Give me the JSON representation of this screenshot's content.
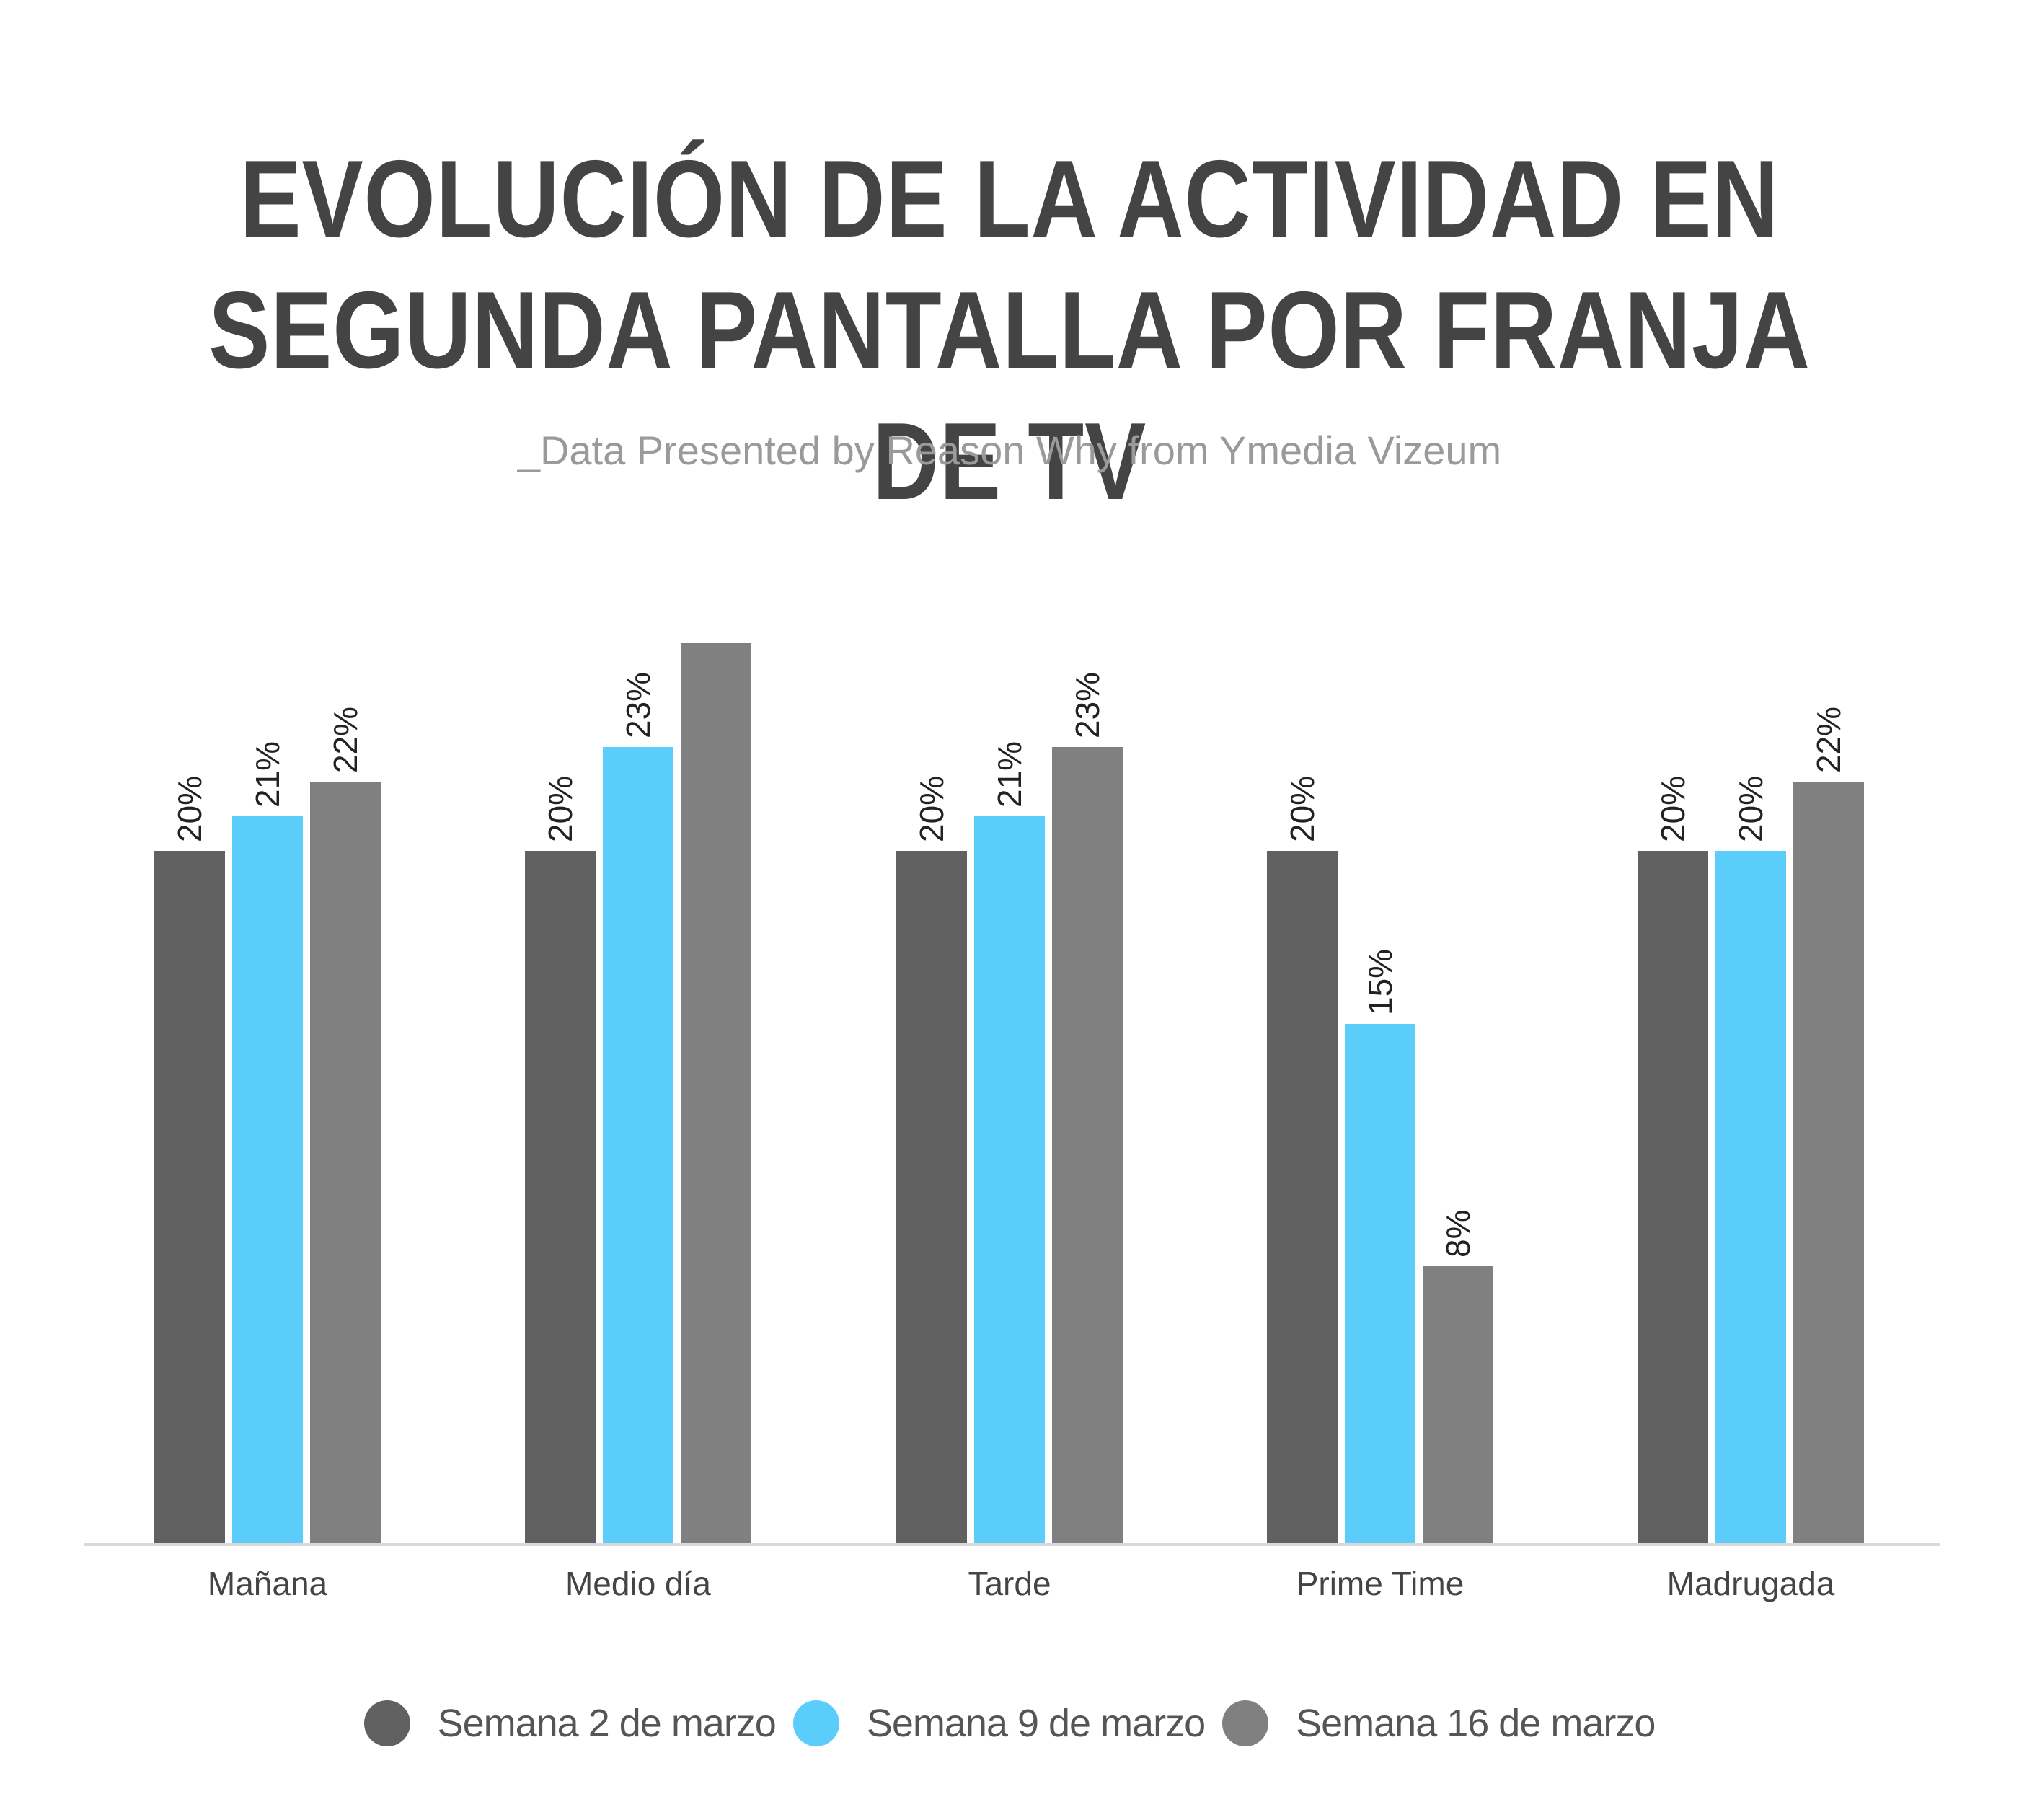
{
  "chart_data": {
    "type": "bar",
    "title_lines": [
      "EVOLUCIÓN DE LA ACTIVIDAD EN",
      "SEGUNDA PANTALLA POR FRANJA DE TV"
    ],
    "subtitle": "_Data Presented by Reason Why from Ymedia Vizeum",
    "categories": [
      "Mañana",
      "Medio día",
      "Tarde",
      "Prime Time",
      "Madrugada"
    ],
    "series": [
      {
        "name": "Semana 2 de marzo",
        "color": "#616161",
        "values": [
          20,
          20,
          20,
          20,
          20
        ],
        "labels": [
          "20%",
          "20%",
          "20%",
          "20%",
          "20%"
        ]
      },
      {
        "name": "Semana 9 de marzo",
        "color": "#5bcdfb",
        "values": [
          21,
          23,
          21,
          15,
          20
        ],
        "labels": [
          "21%",
          "23%",
          "21%",
          "15%",
          "20%"
        ]
      },
      {
        "name": "Semana 16 de marzo",
        "color": "#808080",
        "values": [
          22,
          26,
          23,
          8,
          22
        ],
        "labels": [
          "22%",
          "",
          "23%",
          "8%",
          "22%"
        ]
      }
    ],
    "ylim": [
      0,
      26
    ],
    "grid": false,
    "legend_position": "bottom-center"
  }
}
